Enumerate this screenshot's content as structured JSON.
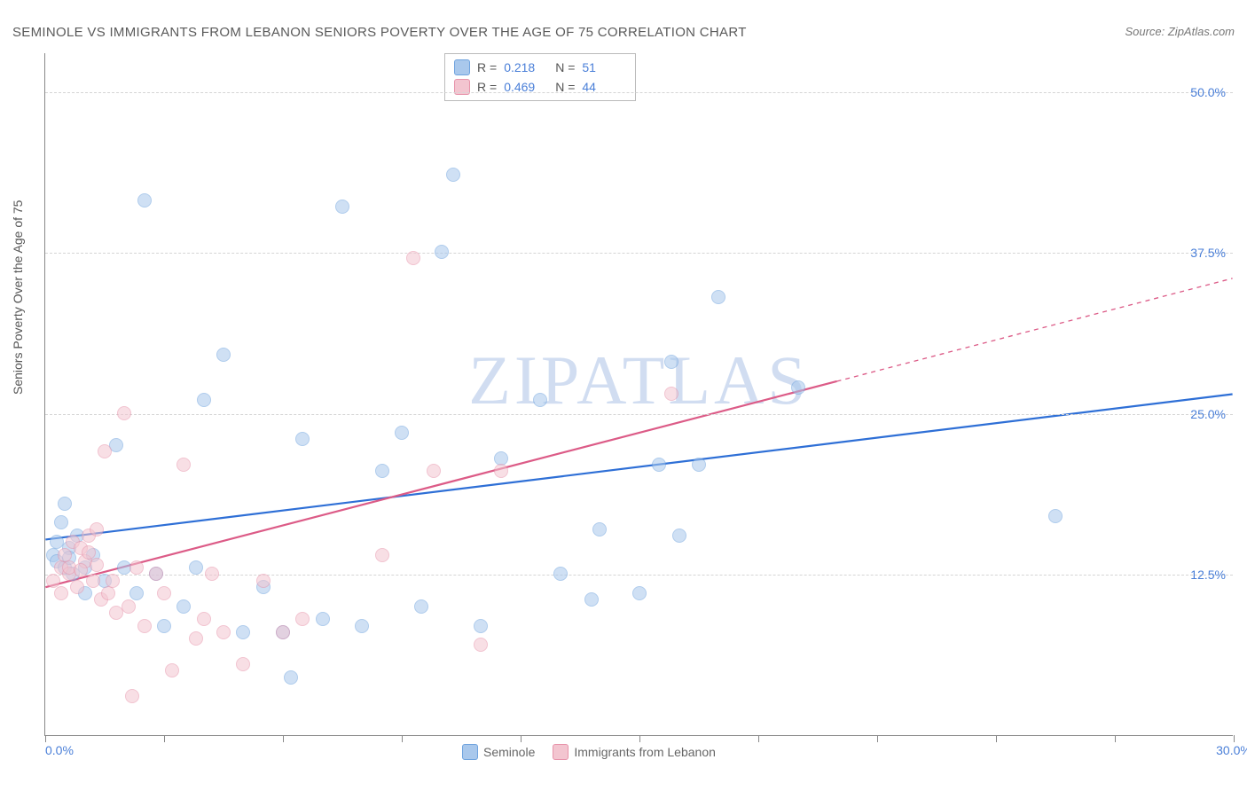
{
  "title": "SEMINOLE VS IMMIGRANTS FROM LEBANON SENIORS POVERTY OVER THE AGE OF 75 CORRELATION CHART",
  "source": "Source: ZipAtlas.com",
  "y_axis_label": "Seniors Poverty Over the Age of 75",
  "watermark": "ZIPATLAS",
  "chart": {
    "type": "scatter",
    "xlim": [
      0,
      30
    ],
    "ylim": [
      0,
      53
    ],
    "x_ticks": [
      0,
      15,
      30
    ],
    "x_tick_labels": [
      "0.0%",
      "",
      "30.0%"
    ],
    "x_minor_ticks": [
      3,
      6,
      9,
      12,
      18,
      21,
      24,
      27
    ],
    "y_ticks": [
      12.5,
      25.0,
      37.5,
      50.0
    ],
    "y_tick_labels": [
      "12.5%",
      "25.0%",
      "37.5%",
      "50.0%"
    ],
    "grid_color": "#d5d5d5",
    "background_color": "#ffffff",
    "point_radius": 8,
    "point_opacity": 0.55,
    "series": [
      {
        "name": "Seminole",
        "fill_color": "#a9c8ec",
        "stroke_color": "#6fa3de",
        "R": "0.218",
        "N": "51",
        "trend": {
          "x1": 0,
          "y1": 15.2,
          "x2": 30,
          "y2": 26.5,
          "color": "#2e6fd6",
          "width": 2.2,
          "dash_from_x": 30
        },
        "points": [
          [
            0.2,
            14.0
          ],
          [
            0.3,
            15.0
          ],
          [
            0.3,
            13.5
          ],
          [
            0.5,
            13.0
          ],
          [
            0.4,
            16.5
          ],
          [
            0.6,
            14.5
          ],
          [
            0.7,
            12.5
          ],
          [
            0.8,
            15.5
          ],
          [
            0.5,
            18.0
          ],
          [
            1.0,
            13.0
          ],
          [
            1.2,
            14.0
          ],
          [
            1.5,
            12.0
          ],
          [
            1.8,
            22.5
          ],
          [
            2.0,
            13.0
          ],
          [
            2.3,
            11.0
          ],
          [
            2.5,
            41.5
          ],
          [
            2.8,
            12.5
          ],
          [
            3.0,
            8.5
          ],
          [
            3.5,
            10.0
          ],
          [
            3.8,
            13.0
          ],
          [
            4.0,
            26.0
          ],
          [
            4.5,
            29.5
          ],
          [
            5.0,
            8.0
          ],
          [
            5.5,
            11.5
          ],
          [
            6.0,
            8.0
          ],
          [
            6.2,
            4.5
          ],
          [
            6.5,
            23.0
          ],
          [
            7.0,
            9.0
          ],
          [
            7.5,
            41.0
          ],
          [
            8.0,
            8.5
          ],
          [
            8.5,
            20.5
          ],
          [
            9.0,
            23.5
          ],
          [
            9.5,
            10.0
          ],
          [
            10.0,
            37.5
          ],
          [
            10.3,
            43.5
          ],
          [
            11.0,
            8.5
          ],
          [
            11.5,
            21.5
          ],
          [
            12.5,
            26.0
          ],
          [
            13.0,
            12.5
          ],
          [
            13.8,
            10.5
          ],
          [
            14.0,
            16.0
          ],
          [
            15.0,
            11.0
          ],
          [
            15.5,
            21.0
          ],
          [
            15.8,
            29.0
          ],
          [
            16.0,
            15.5
          ],
          [
            16.5,
            21.0
          ],
          [
            17.0,
            34.0
          ],
          [
            19.0,
            27.0
          ],
          [
            25.5,
            17.0
          ],
          [
            1.0,
            11.0
          ],
          [
            0.6,
            13.8
          ]
        ]
      },
      {
        "name": "Immigrants from Lebanon",
        "fill_color": "#f3c5d0",
        "stroke_color": "#e793aa",
        "R": "0.469",
        "N": "44",
        "trend": {
          "x1": 0,
          "y1": 11.5,
          "x2": 30,
          "y2": 35.5,
          "color": "#dc5b87",
          "width": 2.2,
          "dash_from_x": 20
        },
        "points": [
          [
            0.2,
            12.0
          ],
          [
            0.4,
            13.0
          ],
          [
            0.5,
            14.0
          ],
          [
            0.6,
            12.5
          ],
          [
            0.7,
            15.0
          ],
          [
            0.8,
            11.5
          ],
          [
            0.9,
            14.5
          ],
          [
            1.0,
            13.5
          ],
          [
            1.1,
            15.5
          ],
          [
            1.2,
            12.0
          ],
          [
            1.3,
            16.0
          ],
          [
            1.4,
            10.5
          ],
          [
            1.5,
            22.0
          ],
          [
            1.6,
            11.0
          ],
          [
            1.8,
            9.5
          ],
          [
            2.0,
            25.0
          ],
          [
            2.1,
            10.0
          ],
          [
            2.2,
            3.0
          ],
          [
            2.3,
            13.0
          ],
          [
            2.5,
            8.5
          ],
          [
            2.8,
            12.5
          ],
          [
            3.0,
            11.0
          ],
          [
            3.2,
            5.0
          ],
          [
            3.5,
            21.0
          ],
          [
            3.8,
            7.5
          ],
          [
            4.0,
            9.0
          ],
          [
            4.2,
            12.5
          ],
          [
            4.5,
            8.0
          ],
          [
            5.0,
            5.5
          ],
          [
            5.5,
            12.0
          ],
          [
            6.0,
            8.0
          ],
          [
            6.5,
            9.0
          ],
          [
            8.5,
            14.0
          ],
          [
            9.3,
            37.0
          ],
          [
            9.8,
            20.5
          ],
          [
            11.0,
            7.0
          ],
          [
            11.5,
            20.5
          ],
          [
            15.8,
            26.5
          ],
          [
            0.4,
            11.0
          ],
          [
            0.6,
            13.0
          ],
          [
            0.9,
            12.8
          ],
          [
            1.1,
            14.2
          ],
          [
            1.3,
            13.2
          ],
          [
            1.7,
            12.0
          ]
        ]
      }
    ]
  },
  "legend_bottom": [
    {
      "label": "Seminole",
      "fill": "#a9c8ec",
      "stroke": "#6fa3de"
    },
    {
      "label": "Immigrants from Lebanon",
      "fill": "#f3c5d0",
      "stroke": "#e793aa"
    }
  ]
}
